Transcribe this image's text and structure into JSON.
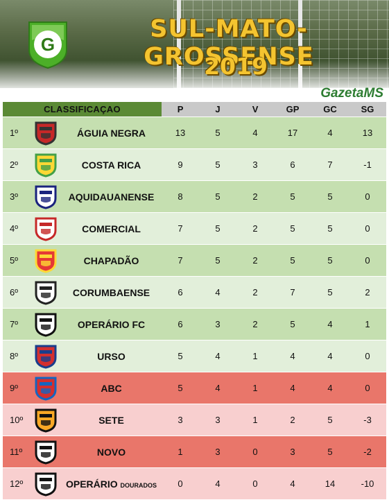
{
  "header": {
    "title_line1": "SUL-MATO-GROSSENSE",
    "title_line2": "2019",
    "logo_letter": "G",
    "brand": "GazetaMS"
  },
  "table": {
    "columns": {
      "classification": "CLASSIFICAÇAO",
      "p": "P",
      "j": "J",
      "v": "V",
      "gp": "GP",
      "gc": "GC",
      "sg": "SG"
    },
    "rows": [
      {
        "pos": "1º",
        "team": "ÁGUIA NEGRA",
        "p": "13",
        "j": "5",
        "v": "4",
        "gp": "17",
        "gc": "4",
        "sg": "13"
      },
      {
        "pos": "2º",
        "team": "COSTA RICA",
        "p": "9",
        "j": "5",
        "v": "3",
        "gp": "6",
        "gc": "7",
        "sg": "-1"
      },
      {
        "pos": "3º",
        "team": "AQUIDAUANENSE",
        "p": "8",
        "j": "5",
        "v": "2",
        "gp": "5",
        "gc": "5",
        "sg": "0"
      },
      {
        "pos": "4º",
        "team": "COMERCIAL",
        "p": "7",
        "j": "5",
        "v": "2",
        "gp": "5",
        "gc": "5",
        "sg": "0"
      },
      {
        "pos": "5º",
        "team": "CHAPADÃO",
        "p": "7",
        "j": "5",
        "v": "2",
        "gp": "5",
        "gc": "5",
        "sg": "0"
      },
      {
        "pos": "6º",
        "team": "CORUMBAENSE",
        "p": "6",
        "j": "4",
        "v": "2",
        "gp": "7",
        "gc": "5",
        "sg": "2"
      },
      {
        "pos": "7º",
        "team": "OPERÁRIO FC",
        "p": "6",
        "j": "3",
        "v": "2",
        "gp": "5",
        "gc": "4",
        "sg": "1"
      },
      {
        "pos": "8º",
        "team": "URSO",
        "p": "5",
        "j": "4",
        "v": "1",
        "gp": "4",
        "gc": "4",
        "sg": "0"
      },
      {
        "pos": "9º",
        "team": "ABC",
        "p": "5",
        "j": "4",
        "v": "1",
        "gp": "4",
        "gc": "4",
        "sg": "0"
      },
      {
        "pos": "10º",
        "team": "SETE",
        "p": "3",
        "j": "3",
        "v": "1",
        "gp": "2",
        "gc": "5",
        "sg": "-3"
      },
      {
        "pos": "11º",
        "team": "NOVO",
        "p": "1",
        "j": "3",
        "v": "0",
        "gp": "3",
        "gc": "5",
        "sg": "-2"
      },
      {
        "pos": "12º",
        "team": "OPERÁRIO",
        "team_suffix": "DOURADOS",
        "p": "0",
        "j": "4",
        "v": "0",
        "gp": "4",
        "gc": "14",
        "sg": "-10"
      }
    ]
  },
  "colors": {
    "header_green": "#5b8a35",
    "row_green_dark": "#c5dfb0",
    "row_green_light": "#e2efda",
    "row_red_dark": "#e9766a",
    "row_red_light": "#f8cfcf",
    "title_gold": "#f4c430",
    "brand_green": "#2e7d32"
  }
}
